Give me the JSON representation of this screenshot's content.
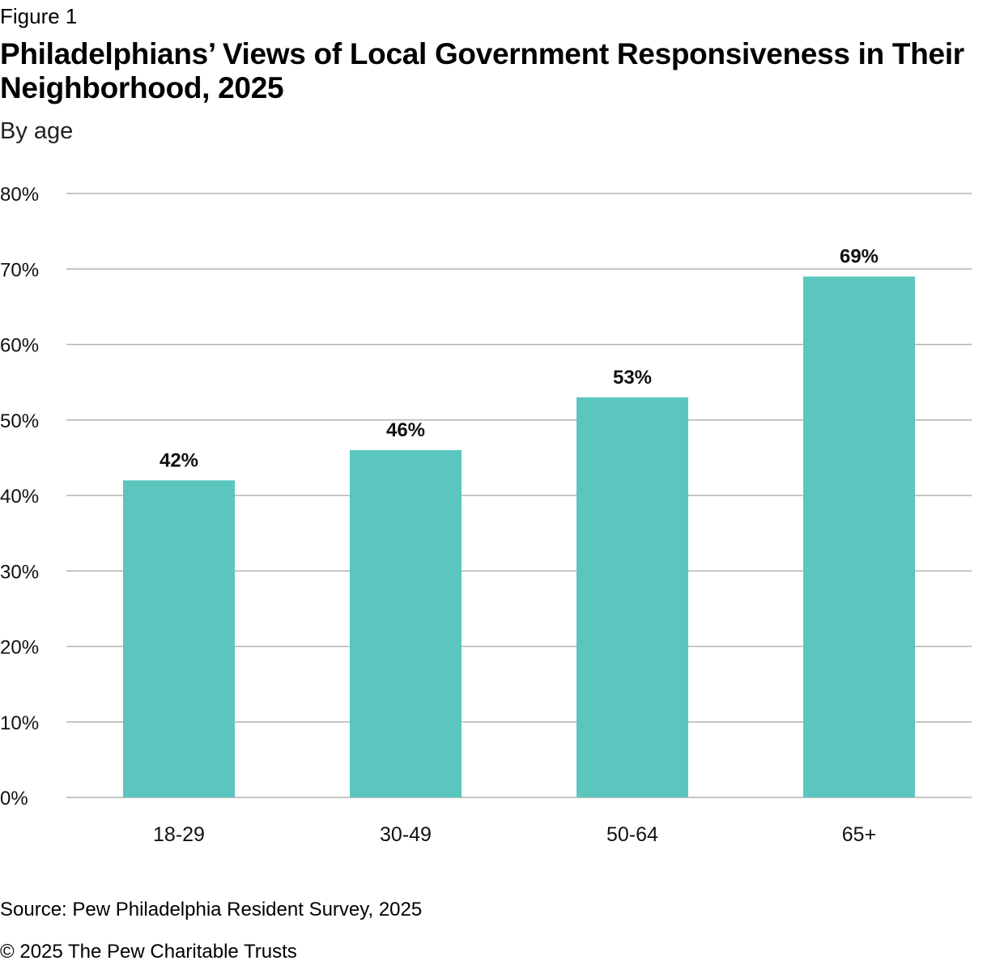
{
  "figure_label": "Figure 1",
  "title": "Philadelphians’ Views of Local Government Responsiveness in Their Neighborhood, 2025",
  "subtitle": "By age",
  "source": "Source: Pew Philadelphia Resident Survey, 2025",
  "copyright": "© 2025 The Pew Charitable Trusts",
  "chart_data": {
    "type": "bar",
    "categories": [
      "18-29",
      "30-49",
      "50-64",
      "65+"
    ],
    "values": [
      42,
      46,
      53,
      69
    ],
    "data_labels": [
      "42%",
      "46%",
      "53%",
      "69%"
    ],
    "ylim": [
      0,
      80
    ],
    "yticks": [
      0,
      10,
      20,
      30,
      40,
      50,
      60,
      70,
      80
    ],
    "ytick_labels": [
      "0%",
      "10%",
      "20%",
      "30%",
      "40%",
      "50%",
      "60%",
      "70%",
      "80%"
    ],
    "xlabel": "",
    "ylabel": "",
    "grid": true,
    "legend": "none",
    "bar_color": "#5bc6bd",
    "grid_color": "#b3b3b3"
  }
}
